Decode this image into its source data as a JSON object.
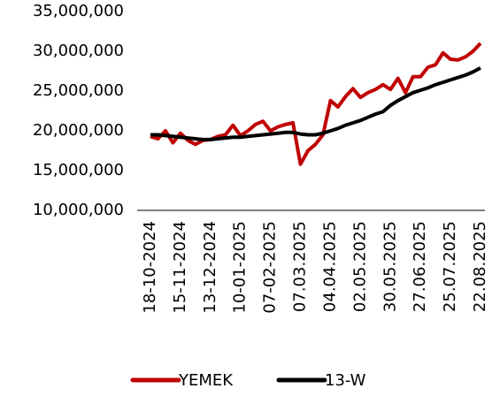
{
  "chart_data": {
    "type": "line",
    "categories": [
      "18-10-2024",
      null,
      null,
      null,
      "15-11-2024",
      null,
      null,
      null,
      "13-12-2024",
      null,
      null,
      null,
      "10-01-2025",
      null,
      null,
      null,
      "07-02-2025",
      null,
      null,
      null,
      "07.03.2025",
      null,
      null,
      null,
      "04.04.2025",
      null,
      null,
      null,
      "02.05.2025",
      null,
      null,
      null,
      "30.05.2025",
      null,
      null,
      null,
      "27.06.2025",
      null,
      null,
      null,
      "25.07.2025",
      null,
      null,
      null,
      "22.08.2025"
    ],
    "series": [
      {
        "name": "YEMEK",
        "color": "#c00000",
        "values": [
          19300000,
          19000000,
          20000000,
          18500000,
          19700000,
          18800000,
          18300000,
          18800000,
          18900000,
          19300000,
          19500000,
          20700000,
          19400000,
          20000000,
          20800000,
          21200000,
          20000000,
          20500000,
          20800000,
          21000000,
          15800000,
          17500000,
          18300000,
          19500000,
          23800000,
          23000000,
          24300000,
          25300000,
          24200000,
          24800000,
          25200000,
          25800000,
          25200000,
          26600000,
          24800000,
          26800000,
          26800000,
          28000000,
          28300000,
          29800000,
          29000000,
          28900000,
          29300000,
          30000000,
          31000000
        ]
      },
      {
        "name": "13-W",
        "color": "#000000",
        "values": [
          19500000,
          19500000,
          19400000,
          19300000,
          19200000,
          19100000,
          19000000,
          18900000,
          18900000,
          19000000,
          19100000,
          19200000,
          19200000,
          19300000,
          19400000,
          19500000,
          19600000,
          19700000,
          19800000,
          19800000,
          19600000,
          19500000,
          19500000,
          19700000,
          20000000,
          20300000,
          20700000,
          21000000,
          21300000,
          21700000,
          22100000,
          22400000,
          23200000,
          23800000,
          24300000,
          24800000,
          25100000,
          25400000,
          25800000,
          26100000,
          26400000,
          26700000,
          27000000,
          27400000,
          27900000
        ]
      }
    ],
    "ylim": [
      10000000,
      35000000
    ],
    "yticks": [
      {
        "value": 10000000,
        "label": "10,000,000"
      },
      {
        "value": 15000000,
        "label": "15,000,000"
      },
      {
        "value": 20000000,
        "label": "20,000,000"
      },
      {
        "value": 25000000,
        "label": "25,000,000"
      },
      {
        "value": 30000000,
        "label": "30,000,000"
      },
      {
        "value": 35000000,
        "label": "35,000,000"
      }
    ],
    "grid": false
  }
}
